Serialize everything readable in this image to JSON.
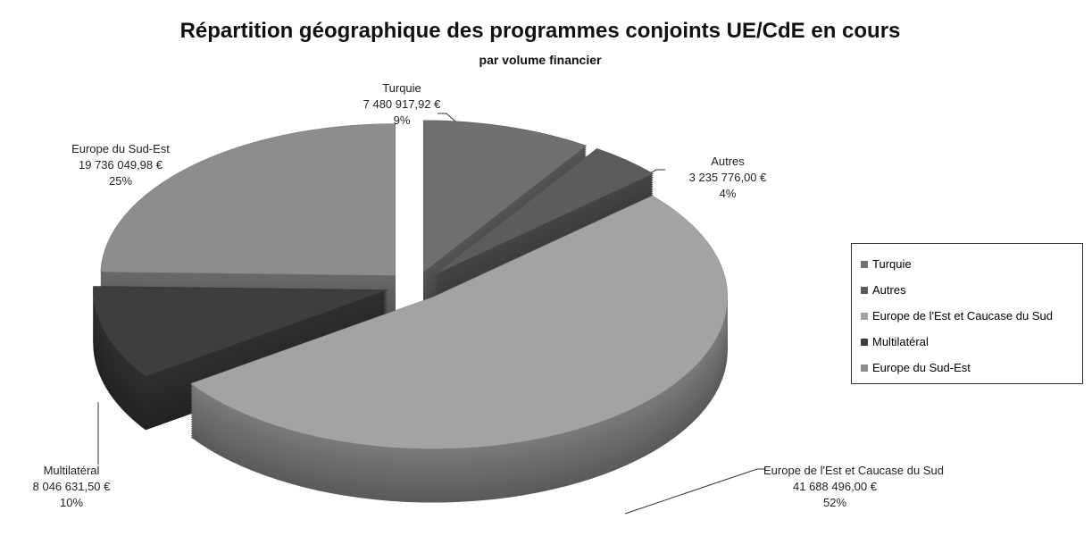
{
  "chart_data": {
    "type": "pie3d",
    "title": "Répartition géographique des programmes conjoints UE/CdE en cours",
    "subtitle": "par volume financier",
    "categories": [
      "Turquie",
      "Autres",
      "Europe de l'Est et Caucase du Sud",
      "Multilatéral",
      "Europe du Sud-Est"
    ],
    "values": [
      7480917.92,
      3235776.0,
      41688496.0,
      8046631.5,
      19736049.98
    ],
    "value_labels": [
      "7 480 917,92 €",
      "3 235 776,00 €",
      "41 688 496,00 €",
      "8 046 631,50 €",
      "19 736 049,98 €"
    ],
    "percent_labels": [
      "9%",
      "4%",
      "52%",
      "10%",
      "25%"
    ],
    "colors": [
      "#707070",
      "#5c5c5c",
      "#a3a3a3",
      "#3e3e3e",
      "#8d8d8d"
    ],
    "legend": "right"
  }
}
